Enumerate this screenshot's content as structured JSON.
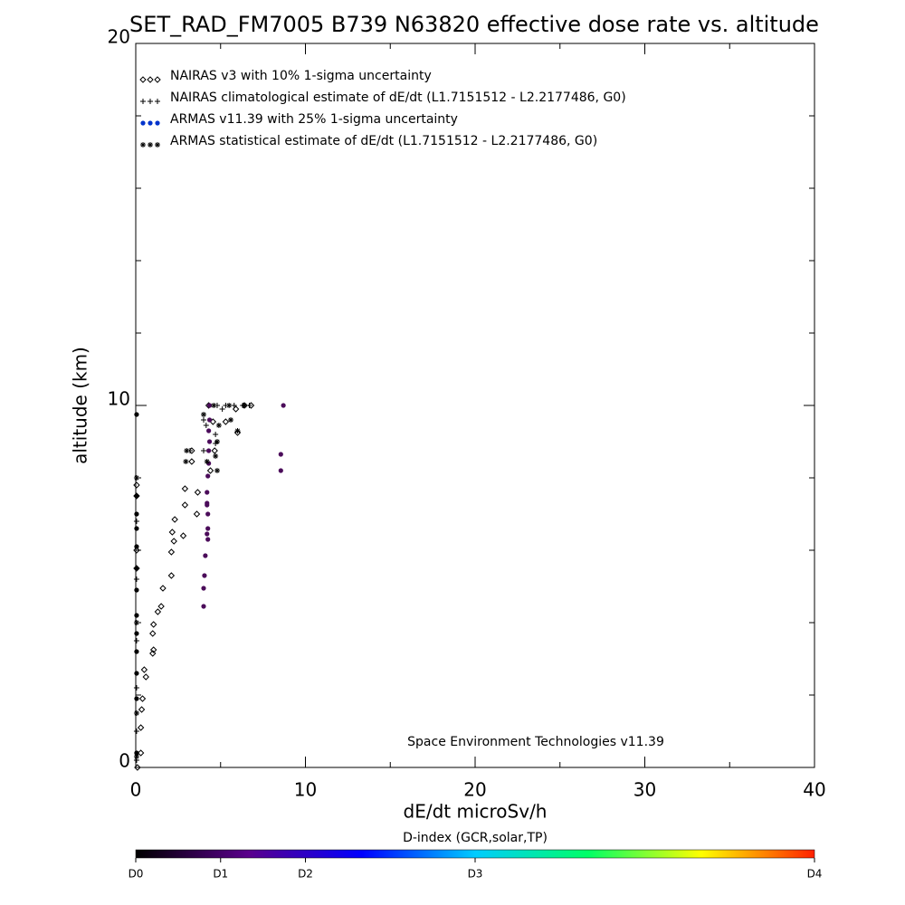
{
  "chart_data": {
    "type": "scatter",
    "title": "SET_RAD_FM7005  B739 N63820 effective dose rate vs. altitude",
    "xlabel": "dE/dt microSv/h",
    "ylabel": "altitude (km)",
    "annotation": "Space Environment Technologies v11.39",
    "xlim": [
      0,
      40
    ],
    "xticks": [
      0,
      10,
      20,
      30,
      40
    ],
    "xminorticks": [
      5,
      15,
      25,
      35
    ],
    "ylim": [
      0,
      20
    ],
    "yticks": [
      0,
      10,
      20
    ],
    "yminorticks": [
      2,
      4,
      6,
      8,
      12,
      14,
      16,
      18
    ],
    "series": [
      {
        "name": "NAIRAS v3 with 10% 1-sigma uncertainty",
        "marker": "diamond",
        "color": "#000000",
        "x": [
          0.1,
          0.3,
          0.3,
          0.35,
          0.4,
          0.6,
          0.5,
          1.0,
          1.05,
          1.0,
          1.05,
          1.3,
          1.5,
          1.6,
          2.1,
          2.1,
          2.25,
          2.8,
          2.15,
          2.3,
          2.9,
          3.6,
          3.65,
          2.9,
          3.3,
          3.3,
          4.4,
          4.65,
          4.55,
          5.3,
          6.0,
          5.9,
          4.3,
          6.4,
          6.8,
          0.05,
          0.05,
          0.05,
          0.05
        ],
        "y": [
          0,
          0.4,
          1.1,
          1.6,
          1.9,
          2.5,
          2.7,
          3.15,
          3.25,
          3.7,
          3.95,
          4.3,
          4.45,
          4.95,
          5.3,
          5.95,
          6.25,
          6.4,
          6.5,
          6.85,
          7.25,
          7.0,
          7.6,
          7.7,
          8.75,
          8.45,
          8.2,
          8.75,
          9.55,
          9.55,
          9.25,
          9.9,
          10,
          10,
          10,
          7.8,
          7.5,
          6.0,
          5.5
        ]
      },
      {
        "name": "NAIRAS climatological estimate of dE/dt (L1.7151512 - L2.2177486, G0)",
        "marker": "plus",
        "color": "#000000",
        "x": [
          0.05,
          0.05,
          0.05,
          0.05,
          0.05,
          0.05,
          4.0,
          4.15,
          4.7,
          4.7,
          4.0,
          3.2,
          4.8,
          5.3,
          5.8,
          6.3,
          6.7,
          5.1
        ],
        "y": [
          0.2,
          1.0,
          2.2,
          3.5,
          5.2,
          6.8,
          9.6,
          9.45,
          9.2,
          8.95,
          8.75,
          8.75,
          10,
          10,
          10,
          10,
          10,
          9.9
        ]
      },
      {
        "name": "ARMAS v11.39 with 25% 1-sigma uncertainty",
        "marker": "dot",
        "color": "#0033cc",
        "x": [
          0.05,
          0.05,
          0.05,
          0.05,
          0.05,
          0.05,
          0.05,
          0.05,
          0.05,
          0.05,
          0.05,
          0.05,
          0.05,
          4.0,
          4.0,
          4.05,
          4.1,
          4.25,
          4.2,
          4.25,
          4.25,
          4.2,
          4.2,
          4.2,
          4.25,
          4.3,
          4.3,
          4.35,
          4.3,
          4.35,
          4.35,
          8.7,
          8.55,
          8.55
        ],
        "y": [
          0.4,
          1.9,
          2.6,
          3.2,
          3.7,
          4.2,
          4.9,
          5.5,
          6.1,
          6.6,
          7.0,
          7.5,
          9.75,
          4.45,
          4.95,
          5.3,
          5.85,
          6.3,
          6.45,
          6.6,
          7.0,
          7.25,
          7.3,
          7.6,
          8.05,
          8.4,
          8.75,
          9.0,
          9.3,
          9.6,
          10,
          10,
          8.65,
          8.2
        ],
        "point_colors": [
          "#000000",
          "#000000",
          "#000000",
          "#000000",
          "#000000",
          "#000000",
          "#000000",
          "#000000",
          "#000000",
          "#000000",
          "#000000",
          "#000000",
          "#000000",
          "#4b0c5a",
          "#4b0c5a",
          "#4b0c5a",
          "#4b0c5a",
          "#4b0c5a",
          "#4b0c5a",
          "#4b0c5a",
          "#4b0c5a",
          "#4b0c5a",
          "#4b0c5a",
          "#4b0c5a",
          "#4b0c5a",
          "#4b0c5a",
          "#4b0c5a",
          "#4b0c5a",
          "#4b0c5a",
          "#4b0c5a",
          "#4b0c5a",
          "#4b0c5a",
          "#4b0c5a",
          "#4b0c5a"
        ]
      },
      {
        "name": "ARMAS statistical estimate of dE/dt (L1.7151512 - L2.2177486, G0)",
        "marker": "asterisk",
        "color": "#000000",
        "x": [
          0.05,
          0.05,
          0.05,
          0.05,
          4.0,
          4.9,
          5.6,
          6.0,
          4.8,
          4.7,
          4.8,
          3.0,
          2.95,
          4.2,
          4.6,
          5.5,
          6.4
        ],
        "y": [
          0.3,
          1.5,
          4.0,
          8.0,
          9.75,
          9.45,
          9.6,
          9.3,
          9.0,
          8.6,
          8.2,
          8.75,
          8.45,
          8.45,
          10,
          10,
          10
        ]
      }
    ],
    "colorbar": {
      "title": "D-index (GCR,solar,TP)",
      "lim": [
        0,
        1
      ],
      "colors": [
        "#000000",
        "#5a008c",
        "#0000ff",
        "#00ccff",
        "#00ff66",
        "#ffff00",
        "#ff2000"
      ],
      "ticks": [
        {
          "value": 0,
          "label": "D0"
        },
        {
          "value": 0.125,
          "label": "D1"
        },
        {
          "value": 0.25,
          "label": "D2"
        },
        {
          "value": 0.5,
          "label": "D3"
        },
        {
          "value": 1,
          "label": "D4"
        }
      ]
    }
  }
}
